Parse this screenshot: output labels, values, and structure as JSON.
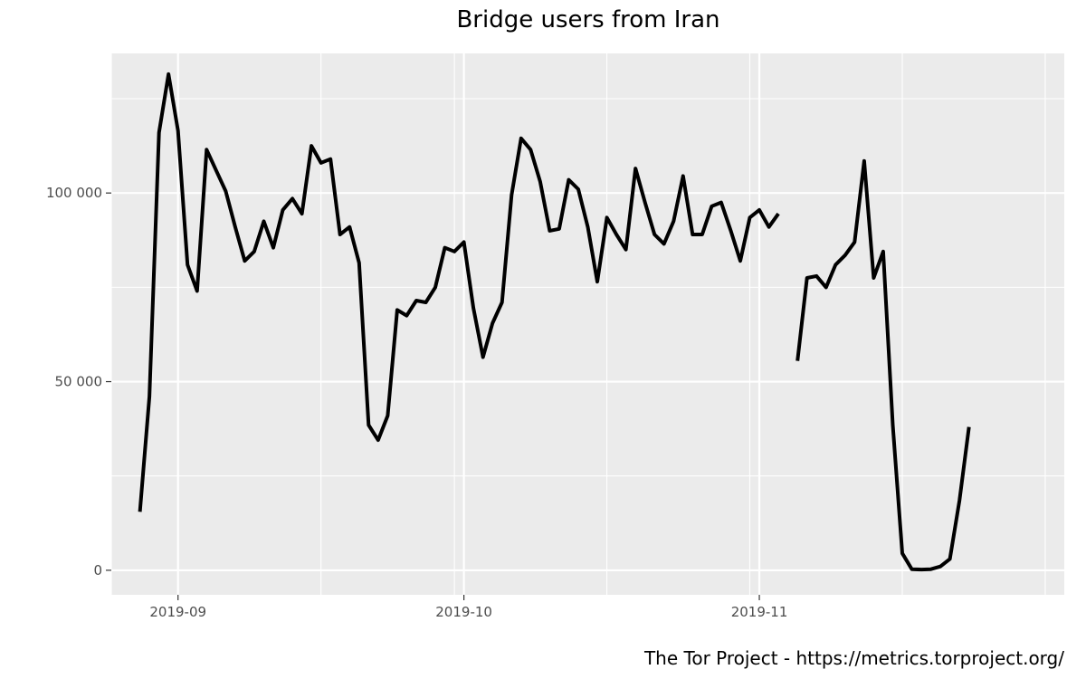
{
  "chart_data": {
    "type": "line",
    "title": "Bridge users from Iran",
    "xlabel": "",
    "ylabel": "",
    "caption": "The Tor Project - https://metrics.torproject.org/",
    "x_range": [
      "2019-08-25",
      "2019-12-03"
    ],
    "ylim": [
      -6500,
      137000
    ],
    "y_ticks": [
      {
        "value": 0,
        "label": "0"
      },
      {
        "value": 50000,
        "label": "50 000"
      },
      {
        "value": 100000,
        "label": "100 000"
      }
    ],
    "y_minor_ticks": [
      25000,
      75000,
      125000
    ],
    "x_ticks": [
      {
        "value": "2019-09-01",
        "label": "2019-09"
      },
      {
        "value": "2019-10-01",
        "label": "2019-10"
      },
      {
        "value": "2019-11-01",
        "label": "2019-11"
      }
    ],
    "x_minor_ticks": [
      "2019-08-25",
      "2019-09-16",
      "2019-09-30",
      "2019-10-16",
      "2019-10-31",
      "2019-11-16",
      "2019-12-01"
    ],
    "grid": true,
    "background": "#ebebeb",
    "series": [
      {
        "color": "#000000",
        "points": [
          [
            "2019-08-28",
            15500
          ],
          [
            "2019-08-29",
            46000
          ],
          [
            "2019-08-30",
            116000
          ],
          [
            "2019-08-31",
            131500
          ],
          [
            "2019-09-01",
            116500
          ],
          [
            "2019-09-02",
            81000
          ],
          [
            "2019-09-03",
            74000
          ],
          [
            "2019-09-04",
            111500
          ],
          [
            "2019-09-05",
            106000
          ],
          [
            "2019-09-06",
            100500
          ],
          [
            "2019-09-07",
            91000
          ],
          [
            "2019-09-08",
            82000
          ],
          [
            "2019-09-09",
            84500
          ],
          [
            "2019-09-10",
            92500
          ],
          [
            "2019-09-11",
            85500
          ],
          [
            "2019-09-12",
            95500
          ],
          [
            "2019-09-13",
            98500
          ],
          [
            "2019-09-14",
            94500
          ],
          [
            "2019-09-15",
            112500
          ],
          [
            "2019-09-16",
            108000
          ],
          [
            "2019-09-17",
            109000
          ],
          [
            "2019-09-18",
            89000
          ],
          [
            "2019-09-19",
            91000
          ],
          [
            "2019-09-20",
            81500
          ],
          [
            "2019-09-21",
            38500
          ],
          [
            "2019-09-22",
            34500
          ],
          [
            "2019-09-23",
            41000
          ],
          [
            "2019-09-24",
            69000
          ],
          [
            "2019-09-25",
            67500
          ],
          [
            "2019-09-26",
            71500
          ],
          [
            "2019-09-27",
            71000
          ],
          [
            "2019-09-28",
            75000
          ],
          [
            "2019-09-29",
            85500
          ],
          [
            "2019-09-30",
            84500
          ],
          [
            "2019-10-01",
            87000
          ],
          [
            "2019-10-02",
            69500
          ],
          [
            "2019-10-03",
            56500
          ],
          [
            "2019-10-04",
            65500
          ],
          [
            "2019-10-05",
            71000
          ],
          [
            "2019-10-06",
            99500
          ],
          [
            "2019-10-07",
            114500
          ],
          [
            "2019-10-08",
            111500
          ],
          [
            "2019-10-09",
            103000
          ],
          [
            "2019-10-10",
            90000
          ],
          [
            "2019-10-11",
            90500
          ],
          [
            "2019-10-12",
            103500
          ],
          [
            "2019-10-13",
            101000
          ],
          [
            "2019-10-14",
            91000
          ],
          [
            "2019-10-15",
            76500
          ],
          [
            "2019-10-16",
            93500
          ],
          [
            "2019-10-17",
            89000
          ],
          [
            "2019-10-18",
            85000
          ],
          [
            "2019-10-19",
            106500
          ],
          [
            "2019-10-20",
            97500
          ],
          [
            "2019-10-21",
            89000
          ],
          [
            "2019-10-22",
            86500
          ],
          [
            "2019-10-23",
            92500
          ],
          [
            "2019-10-24",
            104500
          ],
          [
            "2019-10-25",
            89000
          ],
          [
            "2019-10-26",
            89000
          ],
          [
            "2019-10-27",
            96500
          ],
          [
            "2019-10-28",
            97500
          ],
          [
            "2019-10-29",
            90000
          ],
          [
            "2019-10-30",
            82000
          ],
          [
            "2019-10-31",
            93500
          ],
          [
            "2019-11-01",
            95500
          ],
          [
            "2019-11-02",
            91000
          ],
          [
            "2019-11-03",
            94500
          ],
          [
            "2019-11-04",
            null
          ],
          [
            "2019-11-05",
            55500
          ],
          [
            "2019-11-06",
            77500
          ],
          [
            "2019-11-07",
            78000
          ],
          [
            "2019-11-08",
            75000
          ],
          [
            "2019-11-09",
            81000
          ],
          [
            "2019-11-10",
            83500
          ],
          [
            "2019-11-11",
            87000
          ],
          [
            "2019-11-12",
            108500
          ],
          [
            "2019-11-13",
            77500
          ],
          [
            "2019-11-14",
            84500
          ],
          [
            "2019-11-15",
            38500
          ],
          [
            "2019-11-16",
            4500
          ],
          [
            "2019-11-17",
            300
          ],
          [
            "2019-11-18",
            200
          ],
          [
            "2019-11-19",
            300
          ],
          [
            "2019-11-20",
            1000
          ],
          [
            "2019-11-21",
            3000
          ],
          [
            "2019-11-22",
            18500
          ],
          [
            "2019-11-23",
            38000
          ]
        ]
      }
    ]
  }
}
